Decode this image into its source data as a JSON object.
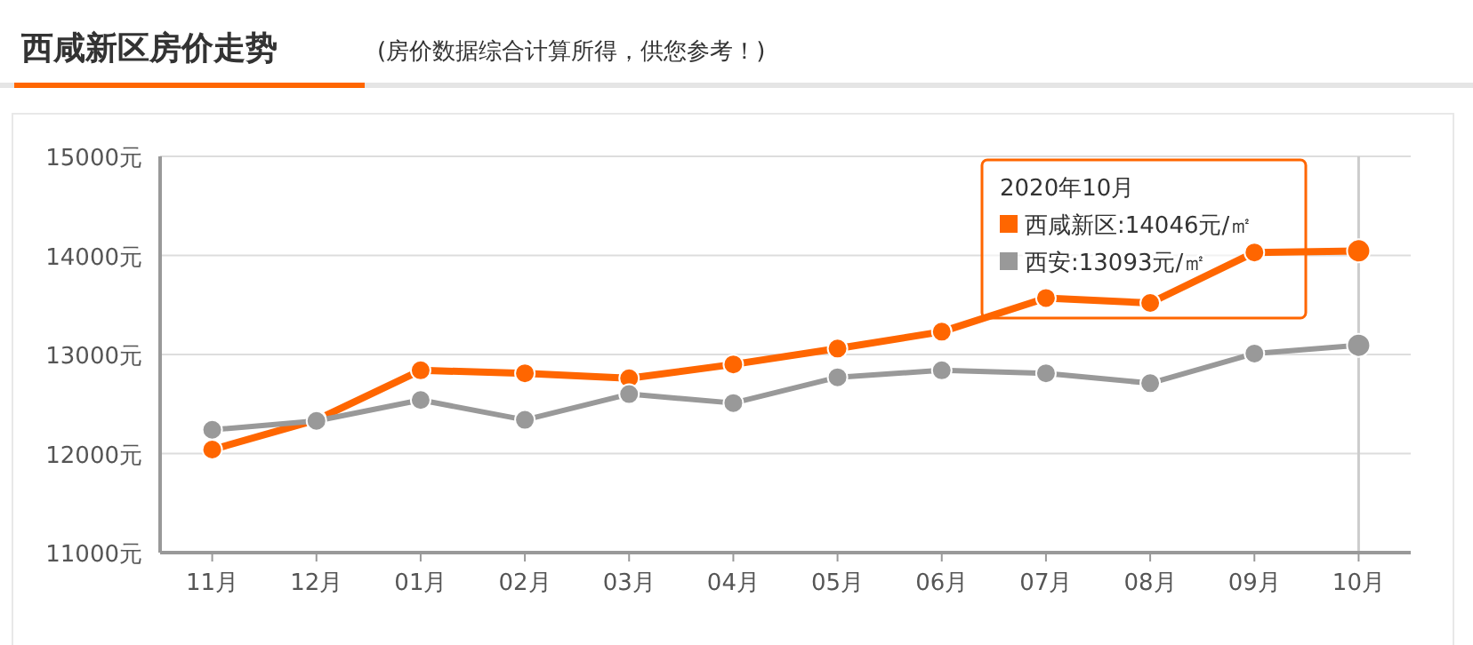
{
  "chart_data": {
    "type": "line",
    "title": "西咸新区房价走势",
    "subtitle": "(房价数据综合计算所得，供您参考！)",
    "categories": [
      "11月",
      "12月",
      "01月",
      "02月",
      "03月",
      "04月",
      "05月",
      "06月",
      "07月",
      "08月",
      "09月",
      "10月"
    ],
    "series": [
      {
        "name": "西咸新区",
        "color": "#ff6600",
        "values": [
          12040,
          12340,
          12840,
          12810,
          12760,
          12900,
          13060,
          13230,
          13570,
          13520,
          14030,
          14046
        ]
      },
      {
        "name": "西安",
        "color": "#999999",
        "values": [
          12240,
          12330,
          12540,
          12340,
          12600,
          12510,
          12770,
          12840,
          12810,
          12710,
          13010,
          13093
        ]
      }
    ],
    "ylim": [
      11000,
      15000
    ],
    "yticks": [
      {
        "value": 11000,
        "label": "11000元"
      },
      {
        "value": 12000,
        "label": "12000元"
      },
      {
        "value": 13000,
        "label": "13000元"
      },
      {
        "value": 14000,
        "label": "14000元"
      },
      {
        "value": 15000,
        "label": "15000元"
      }
    ],
    "grid": "y",
    "marker": "circle",
    "line_style": "solid",
    "legend": "top right",
    "legend_title": "2020年10月",
    "ref_lines": [
      {
        "axis": "x",
        "value": "10月",
        "color": "#cccccc"
      }
    ],
    "annotations": [
      ":14046元/㎡",
      ":13093元/㎡"
    ]
  }
}
